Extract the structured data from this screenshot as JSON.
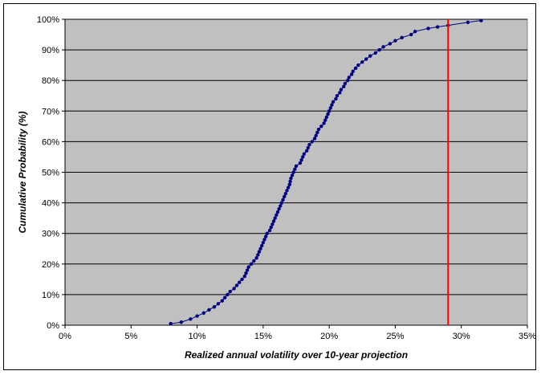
{
  "chart_data": {
    "type": "scatter",
    "title": "",
    "xlabel": "Realized annual volatility over 10-year projection",
    "ylabel": "Cumulative Probability (%)",
    "xlim": [
      0,
      35
    ],
    "ylim": [
      0,
      100
    ],
    "x_ticks": [
      "0%",
      "5%",
      "10%",
      "15%",
      "20%",
      "25%",
      "30%",
      "35%"
    ],
    "y_ticks": [
      "0%",
      "10%",
      "20%",
      "30%",
      "40%",
      "50%",
      "60%",
      "70%",
      "80%",
      "90%",
      "100%"
    ],
    "grid": true,
    "legend": "none",
    "series": [
      {
        "points": [
          [
            8.0,
            0.5
          ],
          [
            8.8,
            1.0
          ],
          [
            9.5,
            2.0
          ],
          [
            10.0,
            3.0
          ],
          [
            10.5,
            4.0
          ],
          [
            10.9,
            5.0
          ],
          [
            11.3,
            6.0
          ],
          [
            11.6,
            7.0
          ],
          [
            11.9,
            8.0
          ],
          [
            12.1,
            9.0
          ],
          [
            12.3,
            10.0
          ],
          [
            12.5,
            11.0
          ],
          [
            12.8,
            12.0
          ],
          [
            13.0,
            13.0
          ],
          [
            13.2,
            14.0
          ],
          [
            13.4,
            15.0
          ],
          [
            13.6,
            16.0
          ],
          [
            13.7,
            17.0
          ],
          [
            13.8,
            18.0
          ],
          [
            13.9,
            19.0
          ],
          [
            14.1,
            20.0
          ],
          [
            14.3,
            21.0
          ],
          [
            14.5,
            22.0
          ],
          [
            14.6,
            23.0
          ],
          [
            14.7,
            24.0
          ],
          [
            14.8,
            25.0
          ],
          [
            14.9,
            26.0
          ],
          [
            15.0,
            27.0
          ],
          [
            15.1,
            28.0
          ],
          [
            15.2,
            29.0
          ],
          [
            15.3,
            30.0
          ],
          [
            15.5,
            31.0
          ],
          [
            15.6,
            32.0
          ],
          [
            15.7,
            33.0
          ],
          [
            15.8,
            34.0
          ],
          [
            15.9,
            35.0
          ],
          [
            16.0,
            36.0
          ],
          [
            16.1,
            37.0
          ],
          [
            16.2,
            38.0
          ],
          [
            16.3,
            39.0
          ],
          [
            16.4,
            40.0
          ],
          [
            16.5,
            41.0
          ],
          [
            16.6,
            42.0
          ],
          [
            16.7,
            43.0
          ],
          [
            16.8,
            44.0
          ],
          [
            16.9,
            45.0
          ],
          [
            17.0,
            46.0
          ],
          [
            17.05,
            47.0
          ],
          [
            17.1,
            48.0
          ],
          [
            17.2,
            49.0
          ],
          [
            17.3,
            50.0
          ],
          [
            17.4,
            51.0
          ],
          [
            17.5,
            52.0
          ],
          [
            17.8,
            53.0
          ],
          [
            17.9,
            54.0
          ],
          [
            18.0,
            55.0
          ],
          [
            18.1,
            56.0
          ],
          [
            18.3,
            57.0
          ],
          [
            18.4,
            58.0
          ],
          [
            18.5,
            59.0
          ],
          [
            18.7,
            60.0
          ],
          [
            18.9,
            61.0
          ],
          [
            19.0,
            62.0
          ],
          [
            19.1,
            63.0
          ],
          [
            19.2,
            64.0
          ],
          [
            19.4,
            65.0
          ],
          [
            19.6,
            66.0
          ],
          [
            19.7,
            67.0
          ],
          [
            19.8,
            68.0
          ],
          [
            19.9,
            69.0
          ],
          [
            20.0,
            70.0
          ],
          [
            20.1,
            71.0
          ],
          [
            20.2,
            72.0
          ],
          [
            20.3,
            73.0
          ],
          [
            20.5,
            74.0
          ],
          [
            20.6,
            75.0
          ],
          [
            20.8,
            76.0
          ],
          [
            20.9,
            77.0
          ],
          [
            21.1,
            78.0
          ],
          [
            21.2,
            79.0
          ],
          [
            21.4,
            80.0
          ],
          [
            21.5,
            81.0
          ],
          [
            21.7,
            82.0
          ],
          [
            21.8,
            83.0
          ],
          [
            22.0,
            84.0
          ],
          [
            22.2,
            85.0
          ],
          [
            22.5,
            86.0
          ],
          [
            22.8,
            87.0
          ],
          [
            23.1,
            88.0
          ],
          [
            23.5,
            89.0
          ],
          [
            23.8,
            90.0
          ],
          [
            24.1,
            91.0
          ],
          [
            24.6,
            92.0
          ],
          [
            25.0,
            93.0
          ],
          [
            25.5,
            94.0
          ],
          [
            26.2,
            95.0
          ],
          [
            26.5,
            96.0
          ],
          [
            27.5,
            97.0
          ],
          [
            28.2,
            97.5
          ],
          [
            29.0,
            98.0
          ],
          [
            30.5,
            99.0
          ],
          [
            31.5,
            99.6
          ]
        ]
      }
    ],
    "reference_line": {
      "x": 29.0
    },
    "colors": {
      "plot_background": "#c0c0c0",
      "series": "#000080",
      "reference_line": "#ff0000",
      "gridline": "#000000"
    }
  }
}
